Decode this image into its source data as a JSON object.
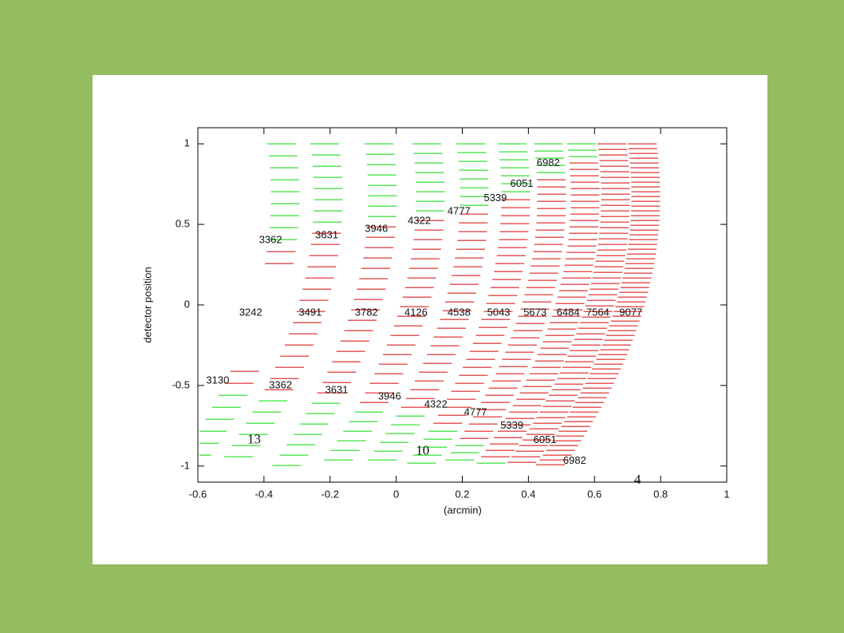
{
  "chart_data": {
    "type": "annotated-scatter",
    "xlabel": "(arcmin)",
    "ylabel": "detector position",
    "xlim": [
      -0.6,
      1
    ],
    "ylim": [
      -1.1,
      1.1
    ],
    "xticks": [
      -0.6,
      -0.4,
      -0.2,
      0,
      0.2,
      0.4,
      0.6,
      0.8,
      1
    ],
    "yticks": [
      -1,
      -0.5,
      0,
      0.5,
      1
    ],
    "colors": {
      "outer": "#22dd22",
      "inner": "#dd2222"
    },
    "annotations": [
      {
        "text": "3362",
        "x": -0.38,
        "y": 0.4
      },
      {
        "text": "3631",
        "x": -0.21,
        "y": 0.43
      },
      {
        "text": "3946",
        "x": -0.06,
        "y": 0.47
      },
      {
        "text": "4322",
        "x": 0.07,
        "y": 0.52
      },
      {
        "text": "4777",
        "x": 0.19,
        "y": 0.58
      },
      {
        "text": "5339",
        "x": 0.3,
        "y": 0.66
      },
      {
        "text": "6051",
        "x": 0.38,
        "y": 0.75
      },
      {
        "text": "6982",
        "x": 0.46,
        "y": 0.88
      },
      {
        "text": "3242",
        "x": -0.44,
        "y": -0.05
      },
      {
        "text": "3491",
        "x": -0.26,
        "y": -0.05
      },
      {
        "text": "3782",
        "x": -0.09,
        "y": -0.05
      },
      {
        "text": "4126",
        "x": 0.06,
        "y": -0.05
      },
      {
        "text": "4538",
        "x": 0.19,
        "y": -0.05
      },
      {
        "text": "5043",
        "x": 0.31,
        "y": -0.05
      },
      {
        "text": "5673",
        "x": 0.42,
        "y": -0.05
      },
      {
        "text": "6484",
        "x": 0.52,
        "y": -0.05
      },
      {
        "text": "7564",
        "x": 0.61,
        "y": -0.05
      },
      {
        "text": "9077",
        "x": 0.71,
        "y": -0.05
      },
      {
        "text": "3130",
        "x": -0.54,
        "y": -0.47
      },
      {
        "text": "3362",
        "x": -0.35,
        "y": -0.5
      },
      {
        "text": "3631",
        "x": -0.18,
        "y": -0.53
      },
      {
        "text": "3946",
        "x": -0.02,
        "y": -0.57
      },
      {
        "text": "4322",
        "x": 0.12,
        "y": -0.62
      },
      {
        "text": "4777",
        "x": 0.24,
        "y": -0.67
      },
      {
        "text": "5339",
        "x": 0.35,
        "y": -0.75
      },
      {
        "text": "6051",
        "x": 0.45,
        "y": -0.84
      },
      {
        "text": "6982",
        "x": 0.54,
        "y": -0.97
      },
      {
        "text": "13",
        "x": -0.43,
        "y": -0.84,
        "font": "serif"
      },
      {
        "text": "10",
        "x": 0.08,
        "y": -0.91,
        "font": "serif"
      },
      {
        "text": "4",
        "x": 0.73,
        "y": -1.09,
        "font": "serif"
      }
    ]
  }
}
